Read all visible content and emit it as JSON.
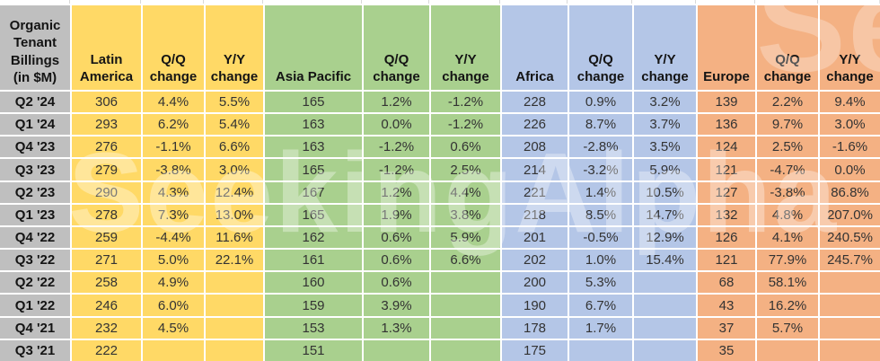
{
  "chart_data": {
    "type": "table",
    "title": "Organic Tenant Billings (in $M)",
    "quarters": [
      "Q2 '24",
      "Q1 '24",
      "Q4 '23",
      "Q3 '23",
      "Q2 '23",
      "Q1 '23",
      "Q4 '22",
      "Q3 '22",
      "Q2 '22",
      "Q1 '22",
      "Q4 '21",
      "Q3 '21"
    ],
    "column_headers": {
      "qq": "Q/Q change",
      "yy": "Y/Y change"
    },
    "regions": [
      {
        "name": "Latin America",
        "color": "#FFD966",
        "values": [
          306,
          293,
          276,
          279,
          290,
          278,
          259,
          271,
          258,
          246,
          232,
          222
        ],
        "qq_change": [
          "4.4%",
          "6.2%",
          "-1.1%",
          "-3.8%",
          "4.3%",
          "7.3%",
          "-4.4%",
          "5.0%",
          "4.9%",
          "6.0%",
          "4.5%",
          ""
        ],
        "yy_change": [
          "5.5%",
          "5.4%",
          "6.6%",
          "3.0%",
          "12.4%",
          "13.0%",
          "11.6%",
          "22.1%",
          "",
          "",
          "",
          ""
        ]
      },
      {
        "name": "Asia Pacific",
        "color": "#A9D08E",
        "values": [
          165,
          163,
          163,
          165,
          167,
          165,
          162,
          161,
          160,
          159,
          153,
          151
        ],
        "qq_change": [
          "1.2%",
          "0.0%",
          "-1.2%",
          "-1.2%",
          "1.2%",
          "1.9%",
          "0.6%",
          "0.6%",
          "0.6%",
          "3.9%",
          "1.3%",
          ""
        ],
        "yy_change": [
          "-1.2%",
          "-1.2%",
          "0.6%",
          "2.5%",
          "4.4%",
          "3.8%",
          "5.9%",
          "6.6%",
          "",
          "",
          "",
          ""
        ]
      },
      {
        "name": "Africa",
        "color": "#B4C6E7",
        "values": [
          228,
          226,
          208,
          214,
          221,
          218,
          201,
          202,
          200,
          190,
          178,
          175
        ],
        "qq_change": [
          "0.9%",
          "8.7%",
          "-2.8%",
          "-3.2%",
          "1.4%",
          "8.5%",
          "-0.5%",
          "1.0%",
          "5.3%",
          "6.7%",
          "1.7%",
          ""
        ],
        "yy_change": [
          "3.2%",
          "3.7%",
          "3.5%",
          "5.9%",
          "10.5%",
          "14.7%",
          "12.9%",
          "15.4%",
          "",
          "",
          "",
          ""
        ]
      },
      {
        "name": "Europe",
        "color": "#F4B183",
        "values": [
          139,
          136,
          124,
          121,
          127,
          132,
          126,
          121,
          68,
          43,
          37,
          35
        ],
        "qq_change": [
          "2.2%",
          "9.7%",
          "2.5%",
          "-4.7%",
          "-3.8%",
          "4.8%",
          "4.1%",
          "77.9%",
          "58.1%",
          "16.2%",
          "5.7%",
          ""
        ],
        "yy_change": [
          "9.4%",
          "3.0%",
          "-1.6%",
          "0.0%",
          "86.8%",
          "207.0%",
          "240.5%",
          "245.7%",
          "",
          "",
          "",
          ""
        ]
      }
    ]
  },
  "colors": {
    "label_bg": "#BFBFBF",
    "grid_bg": "#FFFFFF"
  },
  "watermark": {
    "text": "SeekingAlpha"
  }
}
